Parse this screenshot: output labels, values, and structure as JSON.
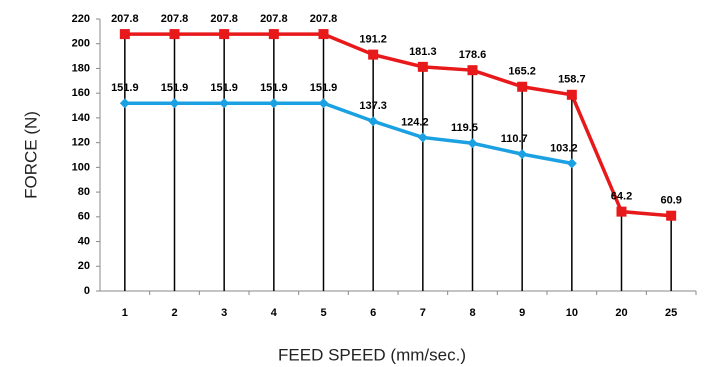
{
  "chart_data": {
    "type": "line",
    "xlabel": "FEED SPEED (mm/sec.)",
    "ylabel": "FORCE (N)",
    "categories": [
      "1",
      "2",
      "3",
      "4",
      "5",
      "6",
      "7",
      "8",
      "9",
      "10",
      "20",
      "25"
    ],
    "series": [
      {
        "color": "#e8191b",
        "values": [
          207.8,
          207.8,
          207.8,
          207.8,
          207.8,
          191.2,
          181.3,
          178.6,
          165.2,
          158.7,
          64.2,
          60.9
        ]
      },
      {
        "color": "#1ba1e2",
        "values": [
          151.9,
          151.9,
          151.9,
          151.9,
          151.9,
          137.3,
          124.2,
          119.5,
          110.7,
          103.2,
          null,
          null
        ]
      }
    ],
    "ylim": [
      0,
      220
    ],
    "yticks": [
      0,
      20,
      40,
      60,
      80,
      100,
      120,
      140,
      160,
      180,
      200,
      220
    ]
  }
}
